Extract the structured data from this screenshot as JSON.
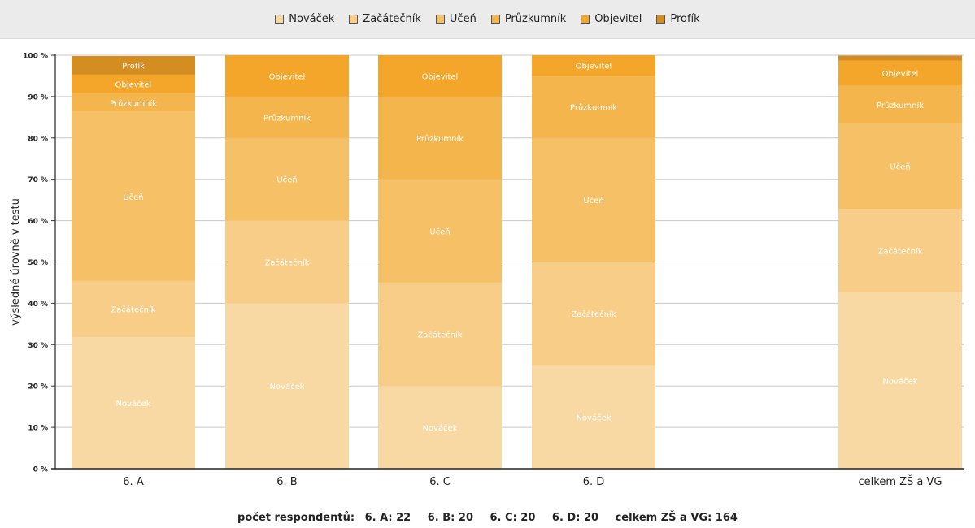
{
  "chart_data": {
    "type": "bar",
    "stacked": true,
    "categories": [
      "6. A",
      "6. B",
      "6. C",
      "6. D",
      "celkem ZŠ a VG"
    ],
    "series": [
      {
        "name": "Nováček",
        "color": "#f9d9a3",
        "values": [
          31.8,
          40,
          20,
          25,
          42.7
        ]
      },
      {
        "name": "Začátečník",
        "color": "#f7cd87",
        "values": [
          13.6,
          20,
          25,
          25,
          20.1
        ]
      },
      {
        "name": "Učeň",
        "color": "#f6c067",
        "values": [
          40.9,
          20,
          25,
          30,
          20.7
        ]
      },
      {
        "name": "Průzkumník",
        "color": "#f5b54d",
        "values": [
          4.5,
          10,
          20,
          15,
          9.1
        ]
      },
      {
        "name": "Objevitel",
        "color": "#f4a62a",
        "values": [
          4.5,
          10,
          10,
          5,
          6.1
        ]
      },
      {
        "name": "Profík",
        "color": "#d48d20",
        "values": [
          4.5,
          0,
          0,
          0,
          1.2
        ]
      }
    ],
    "ylabel": "výsledné úrovně v testu",
    "ylim": [
      0,
      100
    ],
    "yticks": [
      "0 %",
      "10 %",
      "20 %",
      "30 %",
      "40 %",
      "50 %",
      "60 %",
      "70 %",
      "80 %",
      "90 %",
      "100 %"
    ],
    "legend_position": "top",
    "grid": true
  },
  "footer": {
    "label": "počet respondentů:",
    "items": [
      "6. A:  22",
      "6. B:  20",
      "6. C:  20",
      "6. D:  20",
      "celkem ZŠ a VG:  164"
    ]
  }
}
